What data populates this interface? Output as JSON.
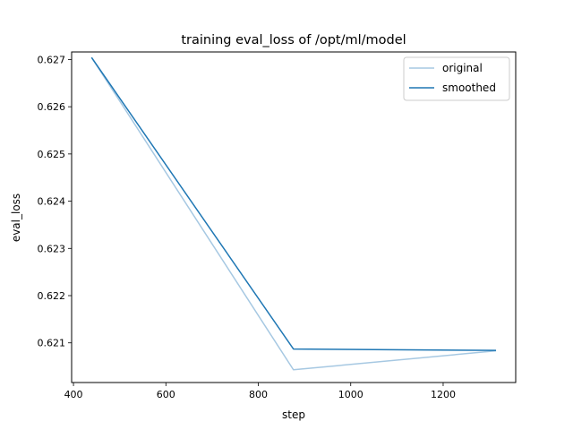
{
  "chart_data": {
    "type": "line",
    "title": "training eval_loss of /opt/ml/model",
    "xlabel": "step",
    "ylabel": "eval_loss",
    "xlim": [
      396,
      1357
    ],
    "ylim": [
      0.62016,
      0.62716
    ],
    "xticks": [
      400,
      600,
      800,
      1000,
      1200
    ],
    "xtick_labels": [
      "400",
      "600",
      "800",
      "1000",
      "1200"
    ],
    "yticks": [
      0.621,
      0.622,
      0.623,
      0.624,
      0.625,
      0.626,
      0.627
    ],
    "ytick_labels": [
      "0.621",
      "0.622",
      "0.623",
      "0.624",
      "0.625",
      "0.626",
      "0.627"
    ],
    "grid": false,
    "legend_position": "top-right",
    "series": [
      {
        "name": "original",
        "color": "#a6c8e2",
        "x": [
          440,
          876,
          1313
        ],
        "y": [
          0.62703,
          0.62043,
          0.62083
        ]
      },
      {
        "name": "smoothed",
        "color": "#1f77b4",
        "x": [
          440,
          876,
          1313
        ],
        "y": [
          0.62703,
          0.62087,
          0.62084
        ]
      }
    ]
  }
}
